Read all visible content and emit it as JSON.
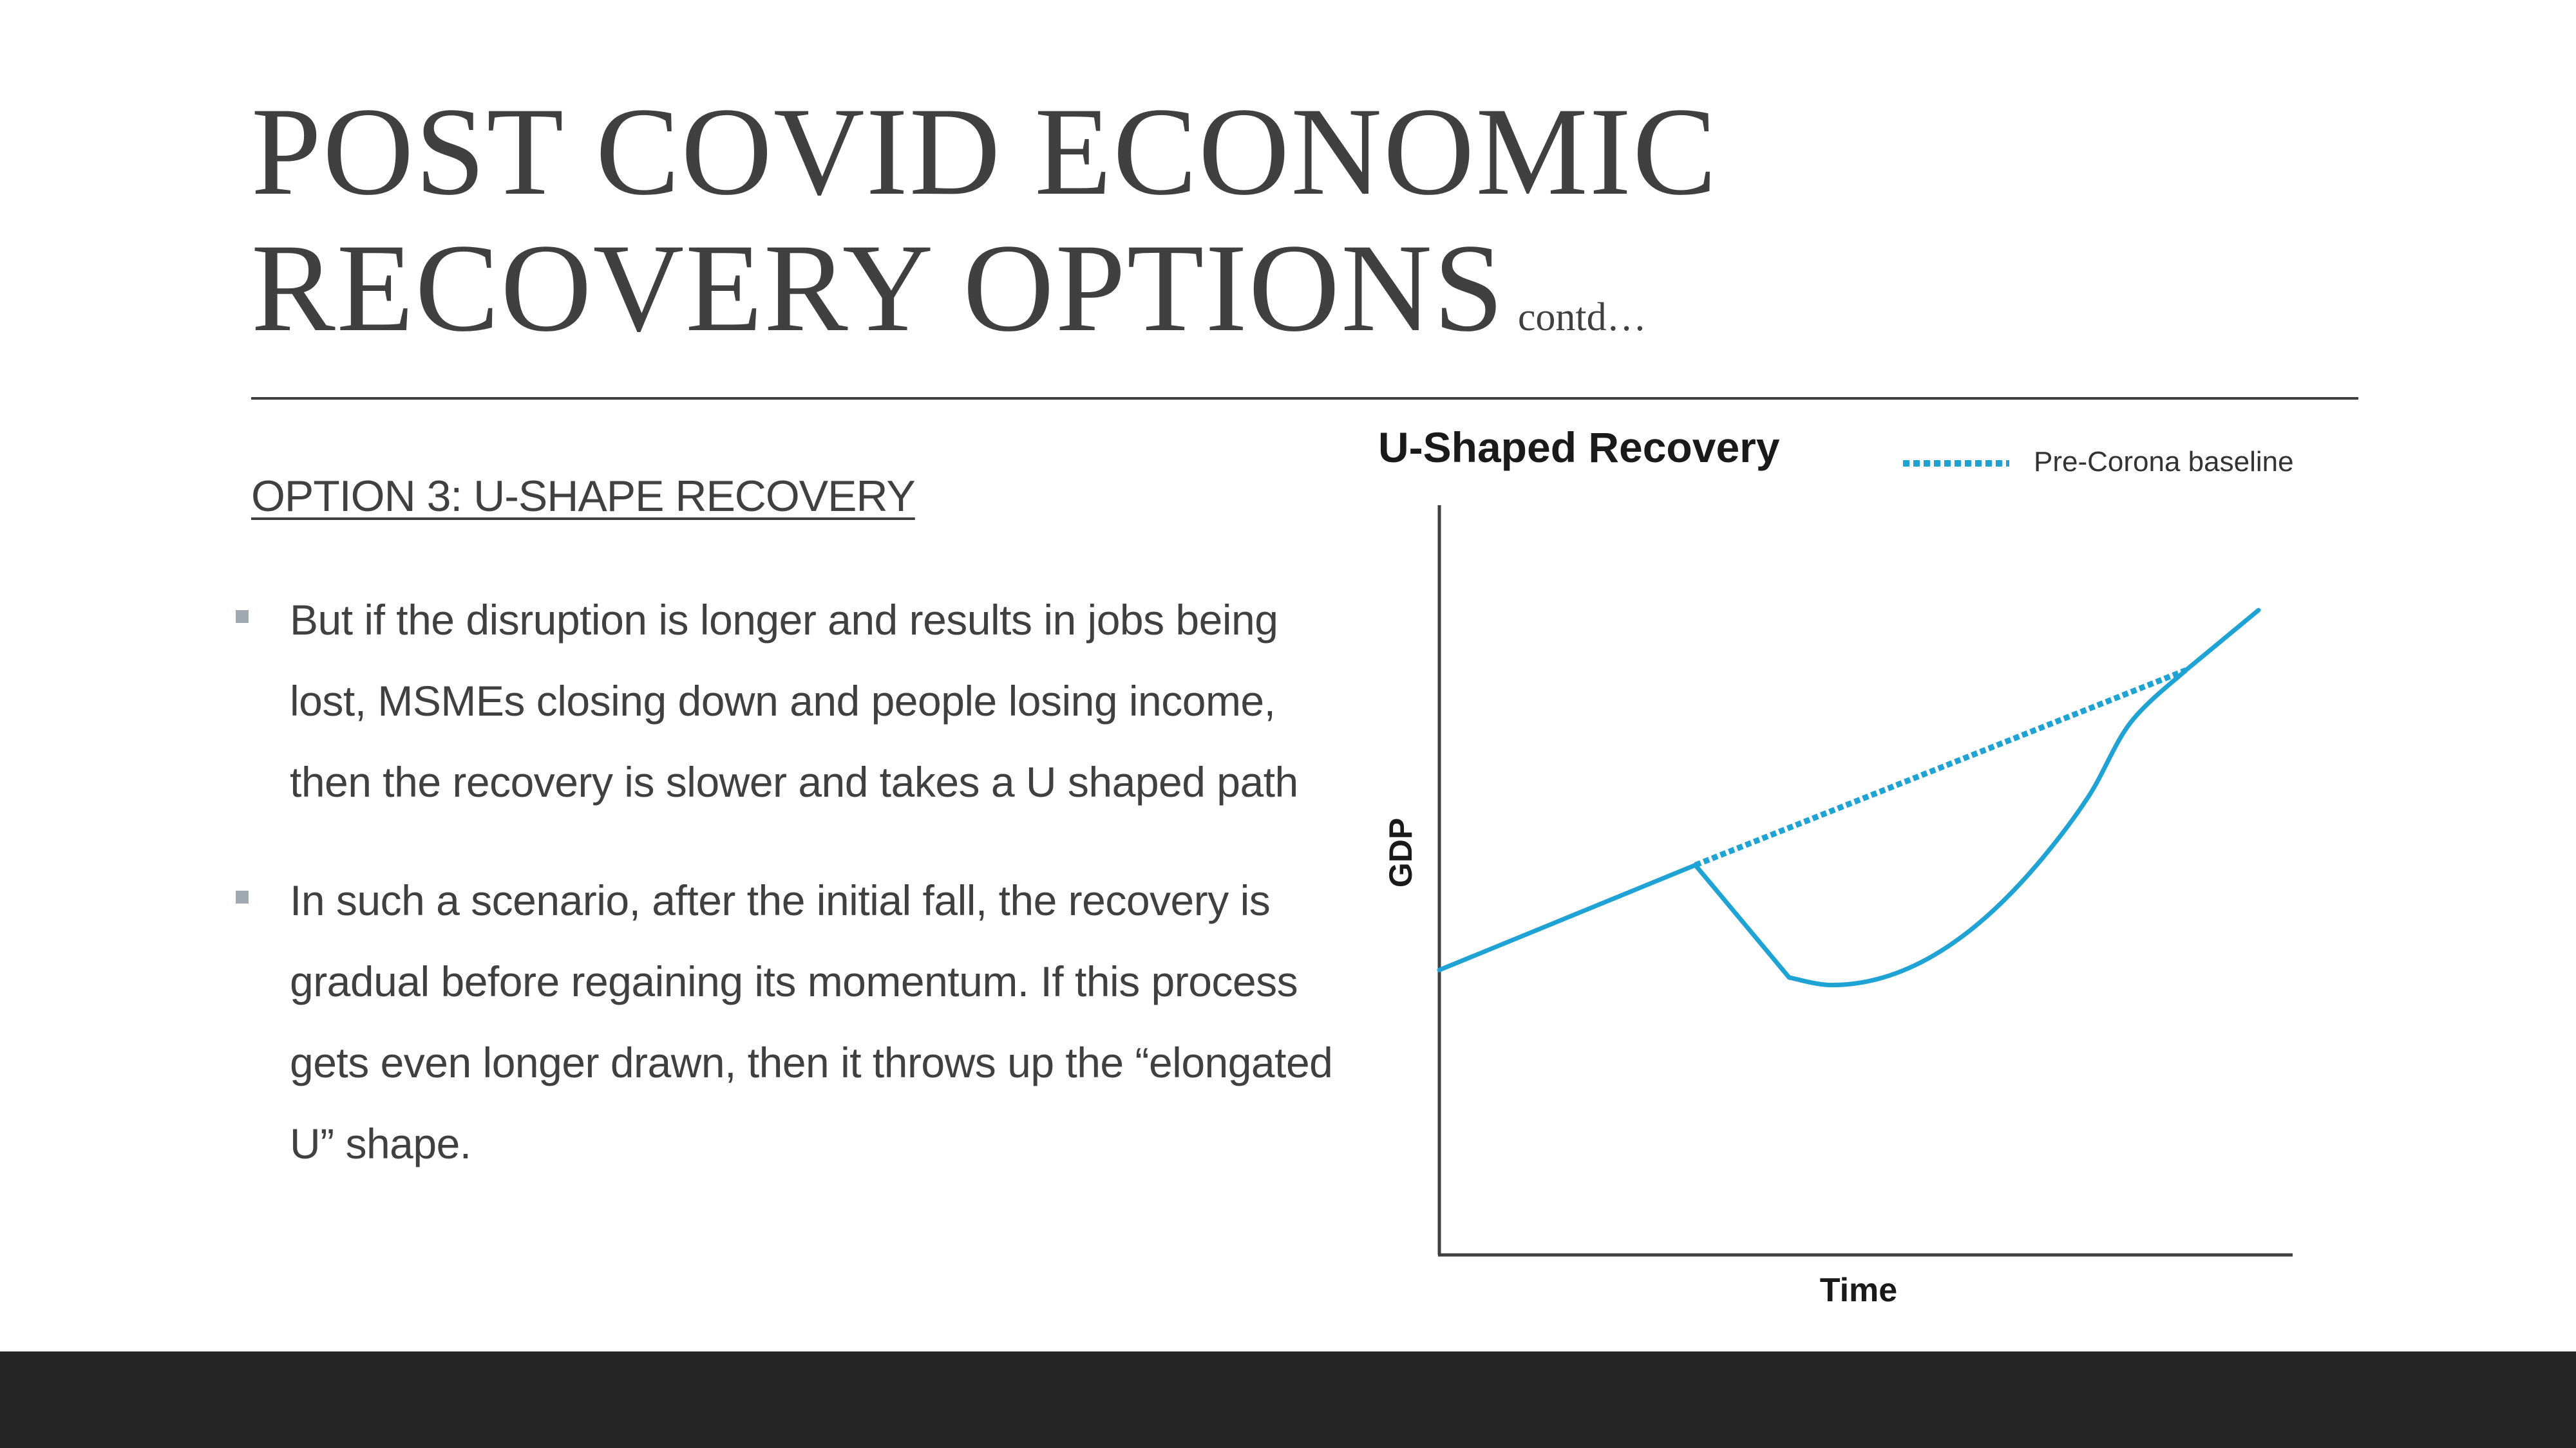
{
  "slide": {
    "title_line1": "POST COVID ECONOMIC",
    "title_line2": "RECOVERY OPTIONS",
    "title_suffix": "contd…",
    "heading": "OPTION 3: U-SHAPE RECOVERY",
    "bullets": [
      "But if the disruption is longer and results in jobs being lost, MSMEs closing down and people losing income, then the recovery is slower and takes a U shaped path",
      "In such a scenario, after the initial fall, the recovery is gradual before regaining its momentum. If this process gets even longer drawn, then it throws up the “elongated U” shape."
    ]
  },
  "chart_data": {
    "type": "line",
    "title": "U-Shaped Recovery",
    "xlabel": "Time",
    "ylabel": "GDP",
    "legend": "top-right",
    "grid": false,
    "xlim": [
      0,
      100
    ],
    "ylim": [
      0,
      100
    ],
    "series": [
      {
        "name": "GDP",
        "style": "solid",
        "color": "#1fa3d4",
        "x": [
          0,
          30,
          41,
          46,
          52,
          58,
          64,
          70,
          76,
          81,
          87.5,
          96
        ],
        "y": [
          38,
          52,
          37,
          36,
          37,
          40,
          45,
          52,
          61,
          71,
          78,
          86
        ]
      },
      {
        "name": "Pre-Corona baseline",
        "style": "dotted",
        "color": "#1fa3d4",
        "x": [
          30,
          87.5
        ],
        "y": [
          52,
          78
        ]
      }
    ]
  },
  "colors": {
    "text": "#404040",
    "accent": "#1fa3d4",
    "footer": "#262626",
    "bullet": "#a0a8b2"
  }
}
